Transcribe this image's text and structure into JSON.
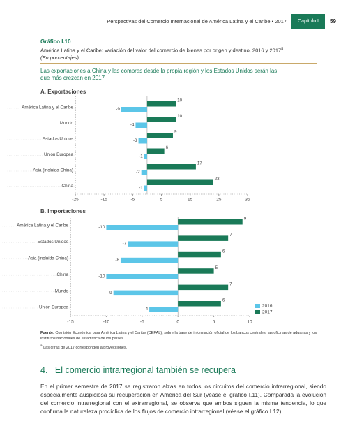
{
  "header": {
    "publication": "Perspectivas del Comercio Internacional de América Latina y el Caribe • 2017",
    "chapter": "Capítulo I",
    "page": "59"
  },
  "figure": {
    "label": "Gráfico I.10",
    "title": "América Latina y el Caribe: variación del valor del comercio de bienes por origen y destino, 2016 y 2017",
    "title_marker": "a",
    "units": "(En porcentajes)",
    "highlight": "Las exportaciones a China y las compras desde la propia región y los Estados Unidos serán las que más crezcan en 2017",
    "source_label": "Fuente:",
    "source": "Comisión Económica para América Latina y el Caribe (CEPAL), sobre la base de información oficial de los bancos centrales, las oficinas de aduanas y los institutos nacionales de estadística de los países.",
    "note_marker": "a",
    "note": "Las cifras de 2017 corresponden a proyecciones."
  },
  "chart_data": [
    {
      "type": "hbar",
      "title": "A. Exportaciones",
      "categories": [
        "América Latina y el Caribe",
        "Mundo",
        "Estados Unidos",
        "Unión Europea",
        "Asia (incluida China)",
        "China"
      ],
      "series": [
        {
          "name": "2016",
          "color": "#5cc6e8",
          "values": [
            -9,
            -4,
            -3,
            -1,
            -2,
            -1
          ]
        },
        {
          "name": "2017",
          "color": "#1a7a58",
          "values": [
            10,
            10,
            9,
            6,
            17,
            23
          ]
        }
      ],
      "xlim": [
        -25,
        35
      ],
      "xticks": [
        -25,
        -15,
        -5,
        5,
        15,
        25,
        35
      ],
      "legend": false
    },
    {
      "type": "hbar",
      "title": "B. Importaciones",
      "categories": [
        "América Latina y el Caribe",
        "Estados Unidos",
        "Asia (incluida China)",
        "China",
        "Mundo",
        "Unión Europea"
      ],
      "series": [
        {
          "name": "2016",
          "color": "#5cc6e8",
          "values": [
            -10,
            -7,
            -8,
            -10,
            -9,
            -4
          ]
        },
        {
          "name": "2017",
          "color": "#1a7a58",
          "values": [
            9,
            7,
            6,
            5,
            7,
            6
          ]
        }
      ],
      "xlim": [
        -15,
        10
      ],
      "xticks": [
        -15,
        -10,
        -5,
        0,
        5,
        10
      ],
      "legend": true,
      "legend_position": "lower right"
    }
  ],
  "section": {
    "number": "4.",
    "title": "El comercio intrarregional también se recupera"
  },
  "body": "En el primer semestre de 2017 se registraron alzas en todos los circuitos del comercio intrarregional, siendo especialmente auspiciosa su recuperación en América del Sur (véase el gráfico I.11). Comparada la evolución del comercio intrarregional con el extrarregional, se observa que ambos siguen la misma tendencia, lo que confirma la naturaleza procíclica de los flujos de comercio intrarregional (véase el gráfico I.12)."
}
